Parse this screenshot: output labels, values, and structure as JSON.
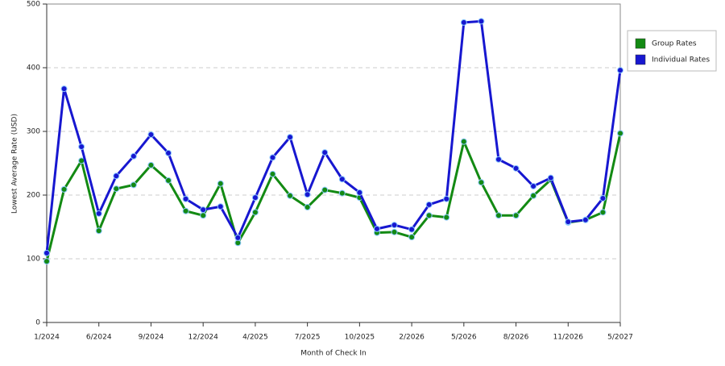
{
  "chart_data": {
    "type": "line",
    "x_label": "Month of Check In",
    "y_label": "Lowest Average Rate (USD)",
    "categories": [
      "1/2024",
      null,
      null,
      "6/2024",
      null,
      null,
      "9/2024",
      null,
      null,
      "12/2024",
      null,
      null,
      "4/2025",
      null,
      null,
      "7/2025",
      null,
      null,
      "10/2025",
      null,
      null,
      "2/2026",
      null,
      null,
      "5/2026",
      null,
      null,
      "8/2026",
      null,
      null,
      "11/2026",
      null,
      null,
      "5/2027"
    ],
    "series": [
      {
        "name": "Group Rates",
        "color": "#138a13",
        "values": [
          96,
          209,
          254,
          144,
          210,
          216,
          247,
          223,
          175,
          168,
          218,
          125,
          173,
          233,
          199,
          181,
          208,
          203,
          196,
          141,
          142,
          134,
          168,
          165,
          284,
          220,
          168,
          168,
          199,
          224,
          157,
          161,
          173,
          297
        ]
      },
      {
        "name": "Individual Rates",
        "color": "#1717d0",
        "values": [
          109,
          367,
          276,
          171,
          230,
          261,
          295,
          266,
          194,
          177,
          182,
          133,
          196,
          259,
          291,
          201,
          267,
          225,
          204,
          147,
          153,
          146,
          185,
          194,
          471,
          473,
          256,
          242,
          214,
          227,
          158,
          161,
          195,
          396
        ]
      }
    ],
    "ylim": [
      0,
      500
    ],
    "yticks": [
      0,
      100,
      200,
      300,
      400,
      500
    ],
    "grid": true,
    "legend": "right"
  }
}
